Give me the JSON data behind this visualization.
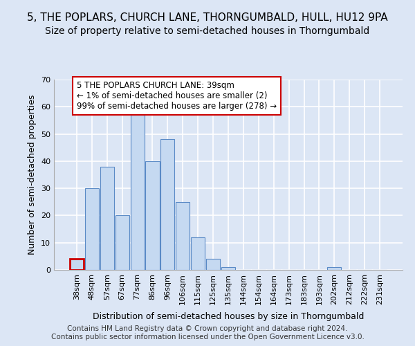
{
  "title": "5, THE POPLARS, CHURCH LANE, THORNGUMBALD, HULL, HU12 9PA",
  "subtitle": "Size of property relative to semi-detached houses in Thorngumbald",
  "xlabel": "Distribution of semi-detached houses by size in Thorngumbald",
  "ylabel": "Number of semi-detached properties",
  "categories": [
    "38sqm",
    "48sqm",
    "57sqm",
    "67sqm",
    "77sqm",
    "86sqm",
    "96sqm",
    "106sqm",
    "115sqm",
    "125sqm",
    "135sqm",
    "144sqm",
    "154sqm",
    "164sqm",
    "173sqm",
    "183sqm",
    "193sqm",
    "202sqm",
    "212sqm",
    "222sqm",
    "231sqm"
  ],
  "values": [
    4,
    30,
    38,
    20,
    57,
    40,
    48,
    25,
    12,
    4,
    1,
    0,
    0,
    0,
    0,
    0,
    0,
    1,
    0,
    0,
    0
  ],
  "bar_color": "#c5d9f1",
  "bar_edge_color": "#5a8ac6",
  "highlight_bar_index": 0,
  "highlight_bar_edge_color": "#cc0000",
  "ylim": [
    0,
    70
  ],
  "yticks": [
    0,
    10,
    20,
    30,
    40,
    50,
    60,
    70
  ],
  "annotation_line1": "5 THE POPLARS CHURCH LANE: 39sqm",
  "annotation_line2": "← 1% of semi-detached houses are smaller (2)",
  "annotation_line3": "99% of semi-detached houses are larger (278) →",
  "annotation_box_edge_color": "#cc0000",
  "footer_line1": "Contains HM Land Registry data © Crown copyright and database right 2024.",
  "footer_line2": "Contains public sector information licensed under the Open Government Licence v3.0.",
  "bg_color": "#dce6f5",
  "plot_bg_color": "#dce6f5",
  "grid_color": "#ffffff",
  "title_fontsize": 11,
  "subtitle_fontsize": 10,
  "axis_label_fontsize": 9,
  "tick_fontsize": 8,
  "annotation_fontsize": 8.5,
  "footer_fontsize": 7.5
}
